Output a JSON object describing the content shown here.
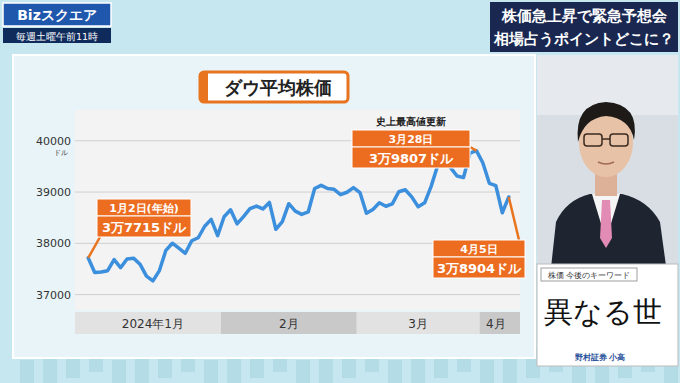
{
  "header": {
    "logo": "Bizスクエア",
    "schedule": "毎週土曜午前11時",
    "headline": [
      "株価急上昇で緊急予想会",
      "相場占うポイントどこに？"
    ]
  },
  "chart_data": {
    "type": "line",
    "title": "ダウ平均株価",
    "color": "#3b8fdc",
    "grid": true,
    "y_axis_label": "ドル",
    "ylim": [
      36700,
      40600
    ],
    "yticks": [
      37000,
      38000,
      39000,
      40000
    ],
    "categories": [
      null,
      null,
      null,
      null,
      null,
      null,
      null,
      null,
      null,
      null,
      "2024年1月",
      null,
      null,
      null,
      null,
      null,
      null,
      null,
      null,
      null,
      null,
      null,
      null,
      null,
      null,
      null,
      null,
      null,
      null,
      null,
      null,
      "2月",
      null,
      null,
      null,
      null,
      null,
      null,
      null,
      null,
      null,
      null,
      null,
      null,
      null,
      null,
      null,
      null,
      null,
      null,
      null,
      "3月",
      null,
      null,
      null,
      null,
      null,
      null,
      null,
      null,
      null,
      null,
      null,
      "4月",
      null,
      null
    ],
    "values": [
      37715,
      37430,
      37440,
      37466,
      37683,
      37525,
      37696,
      37711,
      37593,
      37361,
      37267,
      37469,
      37864,
      38002,
      37906,
      37806,
      38050,
      38109,
      38333,
      38467,
      38150,
      38519,
      38654,
      38380,
      38521,
      38677,
      38726,
      38671,
      38797,
      38273,
      38424,
      38773,
      38628,
      38564,
      38612,
      39069,
      39131,
      39069,
      39053,
      38949,
      38996,
      39087,
      38990,
      38585,
      38661,
      38791,
      38723,
      38770,
      39005,
      39044,
      38906,
      38715,
      38790,
      39111,
      39512,
      39781,
      39476,
      39313,
      39282,
      39760,
      39807,
      39567,
      39170,
      39127,
      38597,
      38904
    ],
    "annotations": [
      {
        "lines": [
          "1月2日(年始)",
          "3万7715ドル"
        ],
        "value": 37715
      },
      {
        "note": "史上最高値更新",
        "lines": [
          "3月28日",
          "3万9807ドル"
        ],
        "value": 39807
      },
      {
        "lines": [
          "4月5日",
          "3万8904ドル"
        ],
        "value": 38904
      }
    ]
  },
  "caption": {
    "label": "株価 今後のキーワード",
    "handwriting": "異なる世",
    "speaker": "野村証券 小高"
  }
}
